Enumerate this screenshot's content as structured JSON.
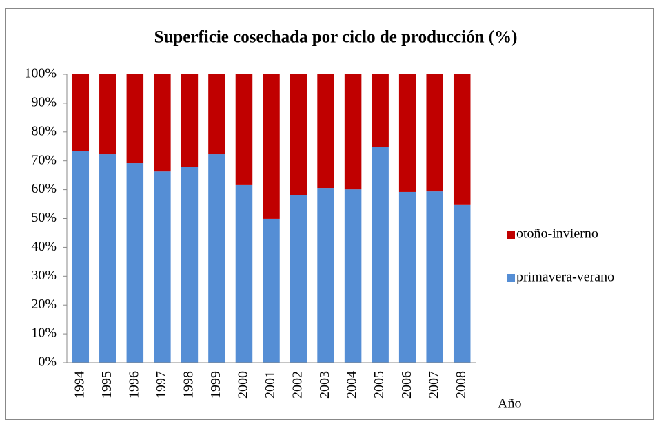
{
  "chart_data": {
    "type": "stacked-bar",
    "title": "Superficie cosechada por ciclo de producción (%)",
    "x_label": "Año",
    "categories": [
      "1994",
      "1995",
      "1996",
      "1997",
      "1998",
      "1999",
      "2000",
      "2001",
      "2002",
      "2003",
      "2004",
      "2005",
      "2006",
      "2007",
      "2008"
    ],
    "series": [
      {
        "name": "primavera-verano",
        "color": "#558ed5",
        "values": [
          73.5,
          72.3,
          69.2,
          66.3,
          67.8,
          72.3,
          61.6,
          49.9,
          58.2,
          60.6,
          60.1,
          74.7,
          59.2,
          59.4,
          54.7
        ]
      },
      {
        "name": "otoño-invierno",
        "color": "#c00000",
        "values": [
          26.5,
          27.7,
          30.8,
          33.7,
          32.2,
          27.7,
          38.4,
          50.1,
          41.8,
          39.4,
          39.9,
          25.3,
          40.8,
          40.6,
          45.3
        ]
      }
    ],
    "ylim": [
      0,
      100
    ],
    "yticks": [
      {
        "value": 0,
        "label": "0%"
      },
      {
        "value": 10,
        "label": "10%"
      },
      {
        "value": 20,
        "label": "20%"
      },
      {
        "value": 30,
        "label": "30%"
      },
      {
        "value": 40,
        "label": "40%"
      },
      {
        "value": 50,
        "label": "50%"
      },
      {
        "value": 60,
        "label": "60%"
      },
      {
        "value": 70,
        "label": "70%"
      },
      {
        "value": 80,
        "label": "80%"
      },
      {
        "value": 90,
        "label": "90%"
      },
      {
        "value": 100,
        "label": "100%"
      }
    ],
    "legend": "right"
  }
}
